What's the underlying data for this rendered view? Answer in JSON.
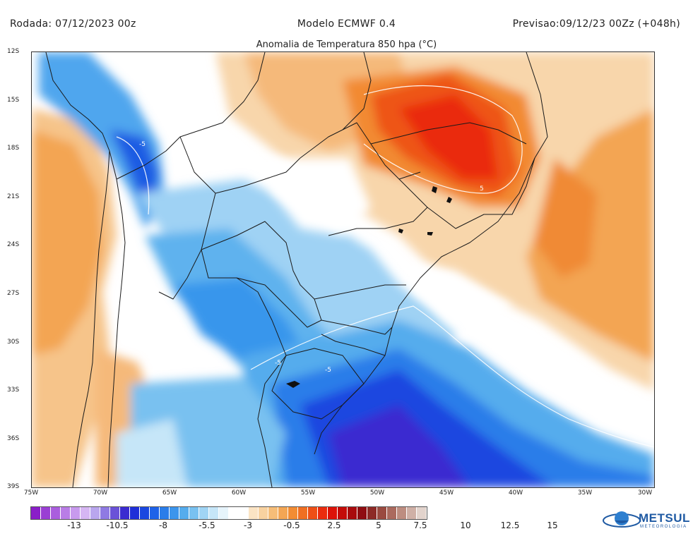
{
  "header": {
    "run": "Rodada: 07/12/2023 00z",
    "model": "Modelo ECMWF 0.4",
    "valid": "Previsao:09/12/23 00Zz (+048h)"
  },
  "subtitle": "Anomalia de Temperatura 850 hpa (°C)",
  "lat_labels": [
    "12S",
    "15S",
    "18S",
    "21S",
    "24S",
    "27S",
    "30S",
    "33S",
    "36S",
    "39S"
  ],
  "lon_labels": [
    "75W",
    "70W",
    "65W",
    "60W",
    "55W",
    "50W",
    "45W",
    "40W",
    "35W",
    "30W"
  ],
  "contour_labels": [
    "-5",
    "-5",
    "-5",
    "5"
  ],
  "colorbar": {
    "colors": [
      "#8a1ec8",
      "#9a3fd4",
      "#aa5ede",
      "#b97de6",
      "#c89aee",
      "#d6b6f3",
      "#b9a6ee",
      "#8f7ae3",
      "#6a52d8",
      "#3a2bd0",
      "#1f2fd8",
      "#1a47e0",
      "#1e62e8",
      "#2a7de9",
      "#3c95ec",
      "#55aced",
      "#79c1f0",
      "#a0d4f4",
      "#c6e6f8",
      "#e6f4fb",
      "#ffffff",
      "#ffffff",
      "#fbe4c4",
      "#f8d2a0",
      "#f6bd78",
      "#f4a654",
      "#f28c33",
      "#f06f22",
      "#ee4f16",
      "#ea2c0e",
      "#dc1208",
      "#c40b08",
      "#a90a0d",
      "#8f0d12",
      "#8d2a26",
      "#9a4a40",
      "#ab6a5e",
      "#bd8d80",
      "#cfb0a6",
      "#e2d3cc"
    ],
    "labels": [
      "-13",
      "-10.5",
      "-8",
      "-5.5",
      "-3",
      "-0.5",
      "2.5",
      "5",
      "7.5",
      "10",
      "12.5",
      "15"
    ]
  },
  "logo": {
    "name": "METSUL",
    "sub": "METEOROLOGIA"
  }
}
